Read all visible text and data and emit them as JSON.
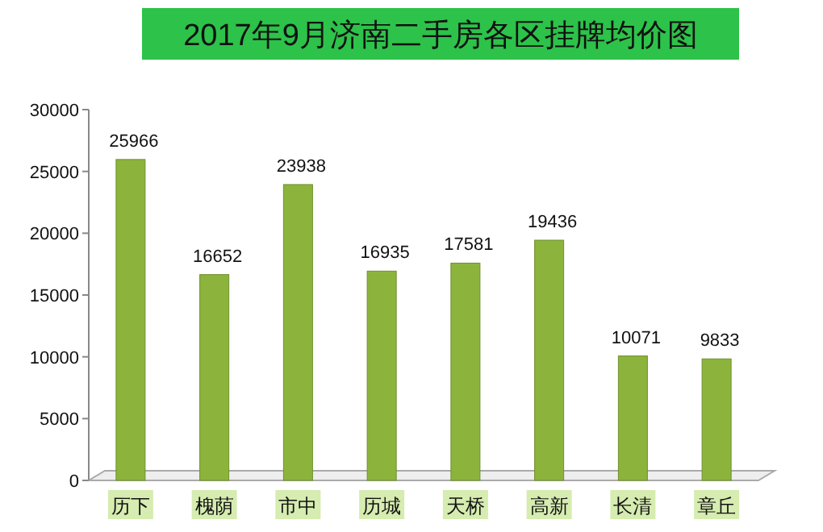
{
  "chart_data": {
    "type": "bar",
    "title": "2017年9月济南二手房各区挂牌均价图",
    "categories": [
      "历下",
      "槐荫",
      "市中",
      "历城",
      "天桥",
      "高新",
      "长清",
      "章丘"
    ],
    "values": [
      25966,
      16652,
      23938,
      16935,
      17581,
      19436,
      10071,
      9833
    ],
    "color": "#8cb43c",
    "ylim": [
      0,
      30000
    ],
    "yticks": [
      0,
      5000,
      10000,
      15000,
      20000,
      25000,
      30000
    ],
    "data_labels": true
  }
}
